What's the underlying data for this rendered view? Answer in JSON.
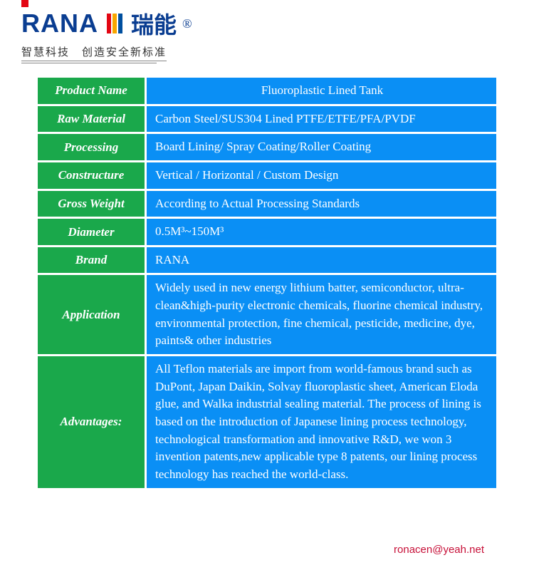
{
  "brand": {
    "logo_text": "RANA",
    "logo_cn": "瑞能",
    "reg_mark": "®",
    "tagline": "智慧科技　创造安全新标准",
    "bar_colors": [
      "#e30613",
      "#f7a600",
      "#004f9f"
    ]
  },
  "table": {
    "rows": [
      {
        "label": "Product Name",
        "value": "Fluoroplastic Lined Tank",
        "center": true
      },
      {
        "label": "Raw Material",
        "value": "Carbon Steel/SUS304 Lined PTFE/ETFE/PFA/PVDF"
      },
      {
        "label": "Processing",
        "value": "Board Lining/ Spray Coating/Roller Coating"
      },
      {
        "label": "Constructure",
        "value": "Vertical / Horizontal / Custom Design"
      },
      {
        "label": "Gross Weight",
        "value": "According to Actual Processing Standards"
      },
      {
        "label": "Diameter",
        "value": "0.5M³~150M³"
      },
      {
        "label": "Brand",
        "value": "RANA"
      },
      {
        "label": "Application",
        "value": "Widely used in new energy lithium batter, semiconductor, ultra-clean&high-purity electronic chemicals, fluorine chemical industry, environmental protection, fine chemical, pesticide, medicine, dye, paints& other industries"
      },
      {
        "label": "Advantages:",
        "value": "All Teflon materials are import from world-famous brand such as DuPont, Japan Daikin, Solvay fluoroplastic sheet, American Eloda glue, and Walka industrial sealing material. The process of lining is based on the introduction of Japanese lining process technology, technological transformation and innovative R&D, we won 3 invention patents,new applicable type 8 patents, our lining process technology has reached the world-class."
      }
    ]
  },
  "footer": {
    "email": "ronacen@yeah.net"
  },
  "colors": {
    "label_bg": "#1aa84b",
    "value_bg": "#0a8ff5",
    "text": "#ffffff",
    "email": "#c71038",
    "logo_navy": "#0a3d91"
  }
}
